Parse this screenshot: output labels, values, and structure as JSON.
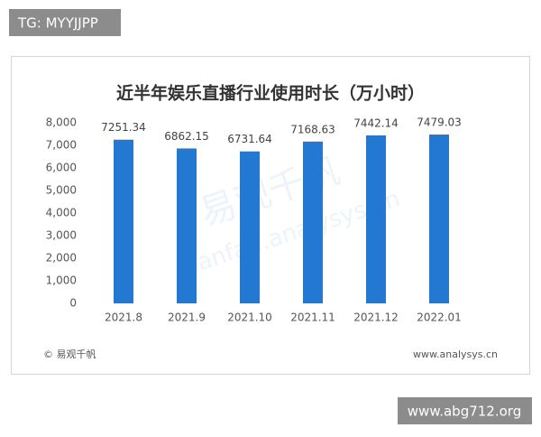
{
  "header": {
    "badge": "TG: MYYJJPP"
  },
  "chart_data": {
    "type": "bar",
    "title": "近半年娱乐直播行业使用时长（万小时）",
    "categories": [
      "2021.8",
      "2021.9",
      "2021.10",
      "2021.11",
      "2021.12",
      "2022.01"
    ],
    "values": [
      7251.34,
      6862.15,
      6731.64,
      7168.63,
      7442.14,
      7479.03
    ],
    "color": "#2378d2",
    "ylim": [
      0,
      8000
    ],
    "yticks": [
      0,
      {
        "value": 1000,
        "label": "1,000"
      },
      {
        "value": 2000,
        "label": "2,000"
      },
      {
        "value": 3000,
        "label": "3,000"
      },
      {
        "value": 4000,
        "label": "4,000"
      },
      {
        "value": 5000,
        "label": "5,000"
      },
      {
        "value": 6000,
        "label": "6,000"
      },
      {
        "value": 7000,
        "label": "7,000"
      },
      {
        "value": 8000,
        "label": "8,000"
      }
    ],
    "grid": false
  },
  "watermark": {
    "brand": "易观千帆",
    "site": "qianfan.analysys.cn"
  },
  "footer": {
    "source": "© 易观千帆",
    "website": "www.analysys.cn"
  },
  "footer_badge": "www.abg712.org"
}
